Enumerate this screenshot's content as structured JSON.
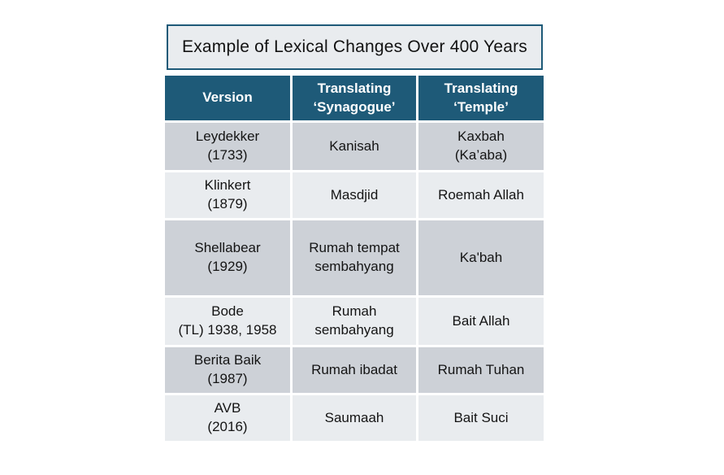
{
  "colors": {
    "header_bg": "#1e5a78",
    "header_text": "#ffffff",
    "row_dark": "#cdd1d7",
    "row_light": "#e9ecef",
    "title_fill": "#e9ecef",
    "title_border": "#1e5a78",
    "cell_text": "#141414",
    "cell_gap": "#ffffff"
  },
  "title_box": {
    "text": "Example of Lexical Changes Over 400 Years"
  },
  "display": {
    "headers": [
      "Version",
      "Translating\n‘Synagogue’",
      "Translating\n‘Temple’"
    ],
    "rows": [
      [
        "Leydekker\n(1733)",
        "Kanisah",
        "Kaxbah\n(Ka’aba)"
      ],
      [
        "Klinkert\n(1879)",
        "Masdjid",
        "Roemah Allah"
      ],
      [
        "Shellabear\n(1929)",
        "Rumah tempat\nsembahyang",
        "Ka'bah"
      ],
      [
        "Bode\n(TL) 1938, 1958",
        "Rumah\nsembahyang",
        "Bait Allah"
      ],
      [
        "Berita Baik\n(1987)",
        "Rumah ibadat",
        "Rumah Tuhan"
      ],
      [
        "AVB\n(2016)",
        "Saumaah",
        "Bait Suci"
      ]
    ]
  },
  "chart_data": {
    "type": "table",
    "title": "Example of Lexical Changes Over 400 Years",
    "columns": [
      "Version",
      "Translating ‘Synagogue’",
      "Translating ‘Temple’"
    ],
    "rows": [
      [
        "Leydekker (1733)",
        "Kanisah",
        "Kaxbah (Ka’aba)"
      ],
      [
        "Klinkert (1879)",
        "Masdjid",
        "Roemah Allah"
      ],
      [
        "Shellabear (1929)",
        "Rumah tempat sembahyang",
        "Ka'bah"
      ],
      [
        "Bode (TL) 1938, 1958",
        "Rumah sembahyang",
        "Bait Allah"
      ],
      [
        "Berita Baik (1987)",
        "Rumah ibadat",
        "Rumah Tuhan"
      ],
      [
        "AVB (2016)",
        "Saumaah",
        "Bait Suci"
      ]
    ]
  }
}
